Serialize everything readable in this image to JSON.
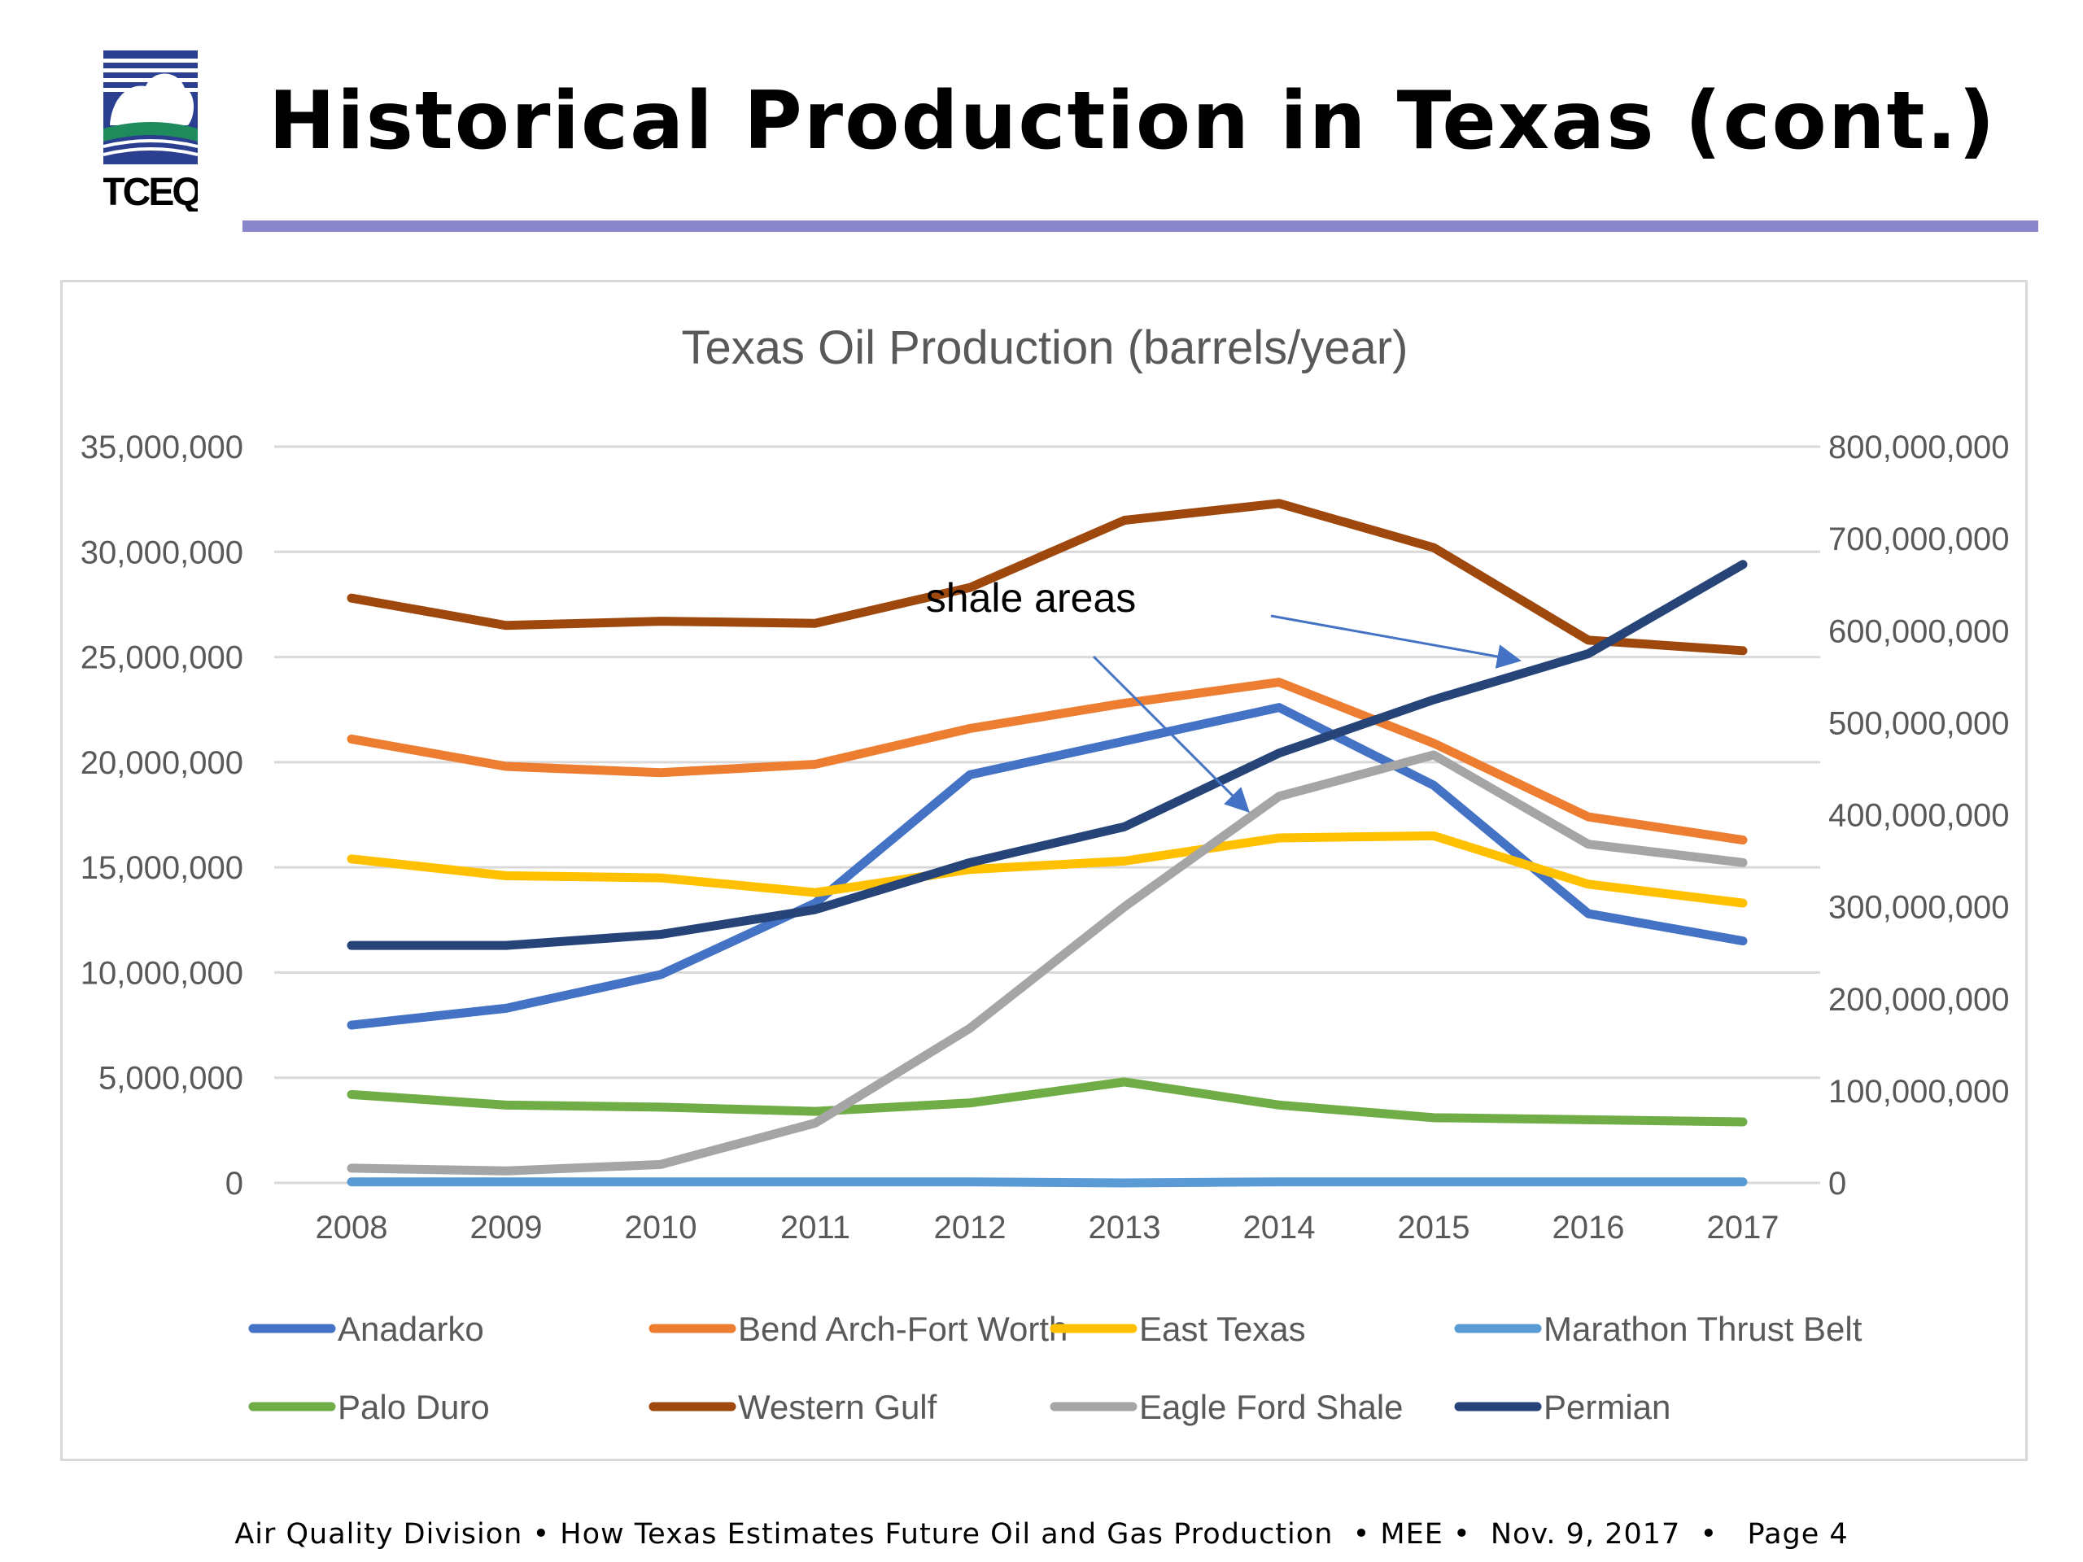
{
  "header": {
    "title": "Historical Production in Texas (cont.)",
    "logo_text": "TCEQ"
  },
  "footer": {
    "text": "Air Quality Division • How Texas Estimates Future Oil and Gas Production  • MEE •  Nov. 9, 2017  •   Page 4"
  },
  "colors": {
    "title_rule": "#8a86cb",
    "Anadarko": "#4472c4",
    "Bend Arch-Fort Worth": "#ed7d31",
    "East Texas": "#ffc000",
    "Marathon Thrust Belt": "#5b9bd5",
    "Palo Duro": "#70ad47",
    "Western Gulf": "#9e480e",
    "Eagle Ford Shale": "#a5a5a5",
    "Permian": "#264478"
  },
  "chart_data": {
    "type": "line",
    "title": "Texas Oil Production (barrels/year)",
    "x": [
      "2008",
      "2009",
      "2010",
      "2011",
      "2012",
      "2013",
      "2014",
      "2015",
      "2016",
      "2017"
    ],
    "y_left": {
      "lim": [
        0,
        35000000
      ],
      "ticks": [
        "0",
        "5,000,000",
        "10,000,000",
        "15,000,000",
        "20,000,000",
        "25,000,000",
        "30,000,000",
        "35,000,000"
      ]
    },
    "y_right": {
      "lim": [
        0,
        800000000
      ],
      "ticks": [
        "0",
        "100,000,000",
        "200,000,000",
        "300,000,000",
        "400,000,000",
        "500,000,000",
        "600,000,000",
        "700,000,000",
        "800,000,000"
      ]
    },
    "grid": true,
    "legend_position": "bottom",
    "series": [
      {
        "name": "Anadarko",
        "axis": "left",
        "values": [
          7500000,
          8300000,
          9900000,
          13300000,
          19400000,
          21000000,
          22600000,
          18900000,
          12800000,
          11500000
        ]
      },
      {
        "name": "Bend Arch-Fort Worth",
        "axis": "left",
        "values": [
          21100000,
          19800000,
          19500000,
          19900000,
          21600000,
          22800000,
          23800000,
          20900000,
          17400000,
          16300000
        ]
      },
      {
        "name": "East Texas",
        "axis": "left",
        "values": [
          15400000,
          14600000,
          14500000,
          13800000,
          14900000,
          15300000,
          16400000,
          16500000,
          14200000,
          13300000
        ]
      },
      {
        "name": "Marathon Thrust Belt",
        "axis": "left",
        "values": [
          50000,
          50000,
          50000,
          50000,
          50000,
          0,
          50000,
          50000,
          50000,
          50000
        ]
      },
      {
        "name": "Palo Duro",
        "axis": "left",
        "values": [
          4200000,
          3700000,
          3600000,
          3400000,
          3800000,
          4800000,
          3700000,
          3100000,
          3000000,
          2900000
        ]
      },
      {
        "name": "Western Gulf",
        "axis": "left",
        "values": [
          27800000,
          26500000,
          26700000,
          26600000,
          28300000,
          31500000,
          32300000,
          30200000,
          25800000,
          25300000
        ]
      },
      {
        "name": "Eagle Ford Shale",
        "axis": "right",
        "values": [
          16000000,
          13000000,
          20000000,
          65000000,
          168000000,
          300000000,
          420000000,
          465000000,
          368000000,
          348000000
        ]
      },
      {
        "name": "Permian",
        "axis": "right",
        "values": [
          258000000,
          258000000,
          270000000,
          297000000,
          348000000,
          387000000,
          467000000,
          525000000,
          575000000,
          672000000
        ]
      }
    ],
    "annotations": [
      {
        "text": "shale areas",
        "arrows_to": [
          "Permian",
          "Eagle Ford Shale"
        ]
      }
    ]
  }
}
